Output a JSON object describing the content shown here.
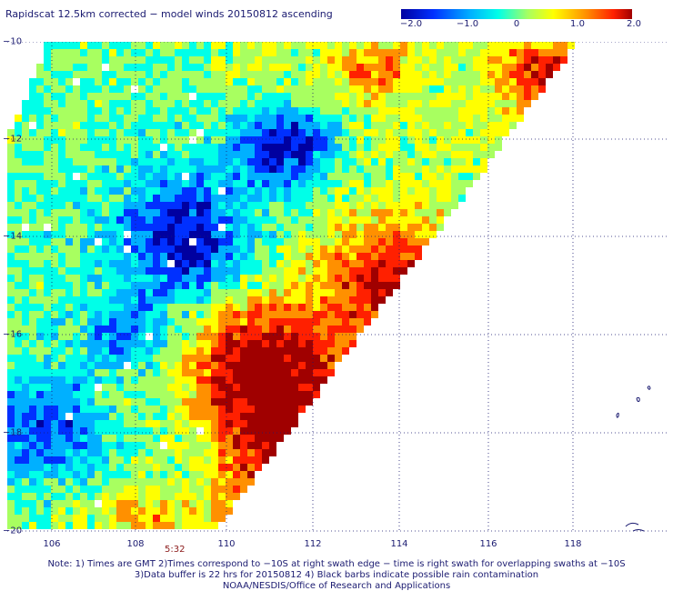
{
  "title": "Rapidscat 12.5km corrected − model winds 20150812 ascending",
  "colorbar": {
    "ticks": [
      {
        "label": "−2.0",
        "value": -2.0
      },
      {
        "label": "−1.0",
        "value": -1.0
      },
      {
        "label": "0",
        "value": 0
      },
      {
        "label": "1.0",
        "value": 1.0
      },
      {
        "label": "2.0",
        "value": 2.0
      }
    ],
    "range": [
      -2.0,
      2.0
    ],
    "colors": [
      "#0000a0",
      "#0030ff",
      "#00b0ff",
      "#00ffe8",
      "#a8ff60",
      "#ffff00",
      "#ff9000",
      "#ff2000",
      "#a00000"
    ]
  },
  "map": {
    "lon_range": [
      105,
      120
    ],
    "lat_range": [
      -10,
      -20
    ],
    "lon_ticks": [
      "106",
      "108",
      "110",
      "112",
      "114",
      "116",
      "118"
    ],
    "lat_ticks": [
      "−10",
      "−12",
      "−14",
      "−16",
      "−18",
      "−20"
    ],
    "grid": "dotted",
    "swath_edge_color": "#ffffff",
    "land_color": "#1a1a70"
  },
  "time_label": "5:32",
  "notes": [
    "Note: 1) Times are GMT 2)Times correspond to −10S at right swath edge − time is right swath for overlapping swaths at −10S",
    "3)Data buffer is 22 hrs for 20150812 4) Black barbs indicate possible rain contamination",
    "NOAA/NESDIS/Office of Research and Applications"
  ]
}
